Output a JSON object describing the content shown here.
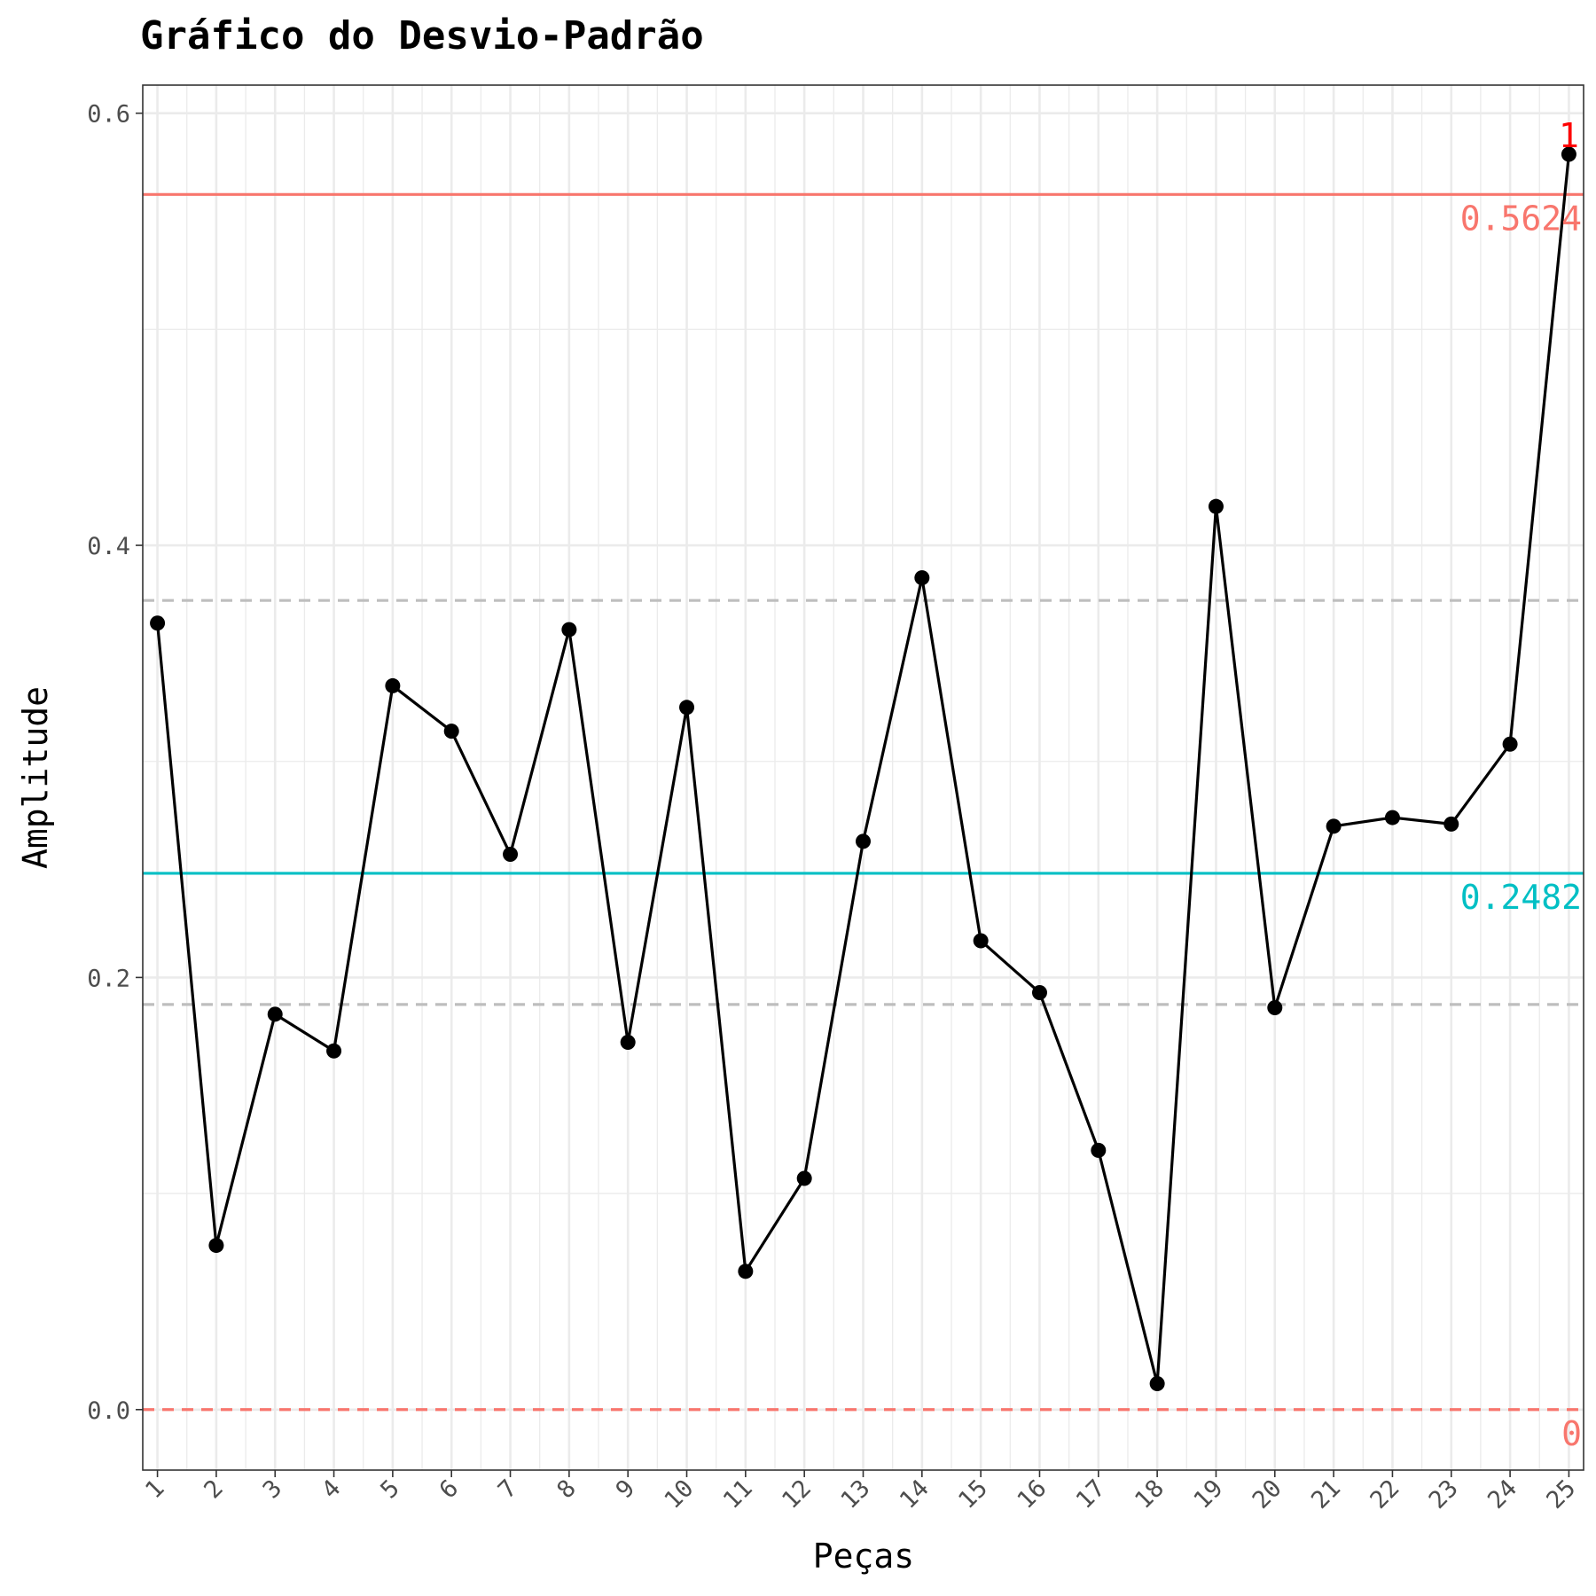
{
  "chart_data": {
    "type": "line",
    "title": "Gráfico do Desvio-Padrão",
    "xlabel": "Peças",
    "ylabel": "Amplitude",
    "x": [
      1,
      2,
      3,
      4,
      5,
      6,
      7,
      8,
      9,
      10,
      11,
      12,
      13,
      14,
      15,
      16,
      17,
      18,
      19,
      20,
      21,
      22,
      23,
      24,
      25
    ],
    "x_tick_labels": [
      "1",
      "2",
      "3",
      "4",
      "5",
      "6",
      "7",
      "8",
      "9",
      "10",
      "11",
      "12",
      "13",
      "14",
      "15",
      "16",
      "17",
      "18",
      "19",
      "20",
      "21",
      "22",
      "23",
      "24",
      "25"
    ],
    "series": [
      {
        "values": [
          0.364,
          0.076,
          0.183,
          0.166,
          0.335,
          0.314,
          0.257,
          0.361,
          0.17,
          0.325,
          0.064,
          0.107,
          0.263,
          0.385,
          0.217,
          0.193,
          0.12,
          0.012,
          0.418,
          0.186,
          0.27,
          0.274,
          0.271,
          0.308,
          0.581
        ],
        "color": "#000000"
      }
    ],
    "ylim": [
      -0.028,
      0.613
    ],
    "y_ticks": [
      0.0,
      0.2,
      0.4,
      0.6
    ],
    "y_tick_labels": [
      "0.0",
      "0.2",
      "0.4",
      "0.6"
    ],
    "grid": true,
    "reference_lines": [
      {
        "value": 0.5624,
        "style": "solid",
        "color": "#F8766D",
        "label": "0.5624"
      },
      {
        "value": 0.2482,
        "style": "solid",
        "color": "#00BFC4",
        "label": "0.2482"
      },
      {
        "value": 0,
        "style": "dashed",
        "color": "#F8766D",
        "label": "0"
      },
      {
        "value": 0.3745,
        "style": "dashed",
        "color": "#BEBEBE",
        "label": ""
      },
      {
        "value": 0.1875,
        "style": "dashed",
        "color": "#BEBEBE",
        "label": ""
      }
    ],
    "annotations": [
      {
        "x": 25,
        "y": 0.581,
        "text": "1",
        "color": "#FF0000"
      }
    ]
  }
}
